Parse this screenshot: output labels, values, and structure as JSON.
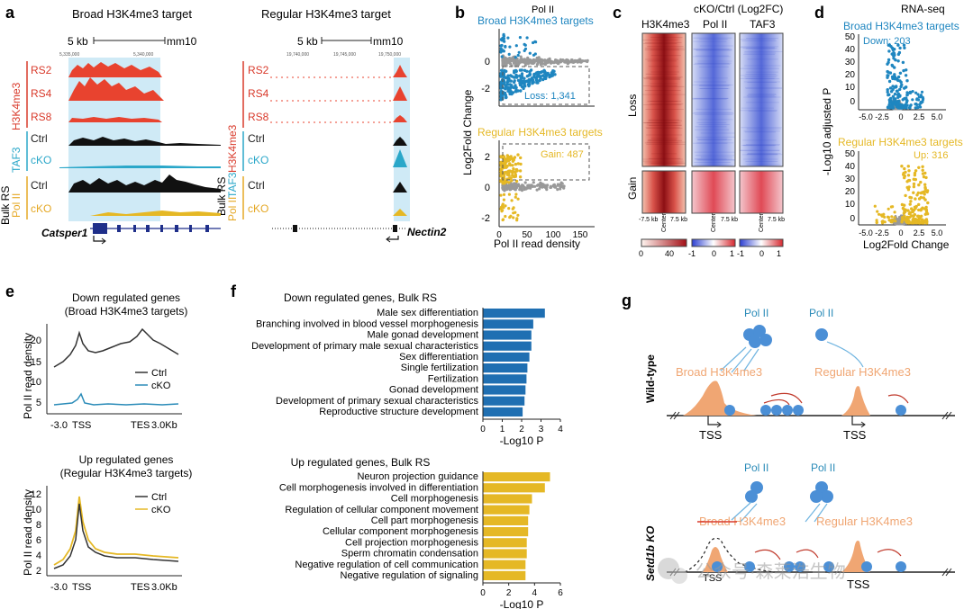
{
  "panel_labels": [
    "a",
    "b",
    "c",
    "d",
    "e",
    "f",
    "g"
  ],
  "a": {
    "title_left": "Broad H3K4me3 target",
    "title_right": "Regular H3K4me3 target",
    "scale_text": "5 kb",
    "genome": "mm10",
    "coords_left": [
      "5,335,000",
      "5,340,000"
    ],
    "coords_right": [
      "19,740,000",
      "19,745,000",
      "19,750,000"
    ],
    "group_h3k4me3": "H3K4me3",
    "group_taf3": "TAF3",
    "group_pol2": "Pol II",
    "bulk": "Bulk RS",
    "tracks": [
      "RS2",
      "RS4",
      "RS8",
      "Ctrl",
      "cKO",
      "Ctrl",
      "cKO"
    ],
    "gene_left": "Catsper1",
    "gene_right": "Nectin2"
  },
  "b": {
    "title": "Pol II",
    "top_label": "Broad H3K4me3 targets",
    "bottom_label": "Regular H3K4me3 targets",
    "loss": "Loss: 1,341",
    "gain": "Gain: 487",
    "ylabel": "Log2Fold Change",
    "xlabel": "Pol II read density",
    "xticks": [
      "0",
      "50",
      "100",
      "150"
    ],
    "yticks_top": [
      "0",
      "-2"
    ],
    "yticks_bottom": [
      "2",
      "0",
      "-2"
    ]
  },
  "c": {
    "title": "cKO/Ctrl (Log2FC)",
    "cols": [
      "H3K4me3",
      "Pol II",
      "TAF3"
    ],
    "rows": [
      "Loss",
      "Gain"
    ],
    "xticks": [
      "-7.5 kb",
      "Center",
      "7.5 kb"
    ],
    "cbar1": [
      "0",
      "40"
    ],
    "cbar2": [
      "-1",
      "0",
      "1"
    ]
  },
  "d": {
    "title": "RNA-seq",
    "top_label": "Broad H3K4me3 targets",
    "bottom_label": "Regular H3K4me3 targets",
    "down": "Down: 203",
    "up": "Up: 316",
    "ylabel": "-Log10 adjusted P",
    "xlabel": "Log2Fold Change",
    "xticks": [
      "-5.0",
      "-2.5",
      "0",
      "2.5",
      "5.0"
    ],
    "yticks_top": [
      "50",
      "40",
      "30",
      "20",
      "10",
      "0"
    ],
    "yticks_bottom": [
      "50",
      "40",
      "30",
      "20",
      "10",
      "0"
    ]
  },
  "e": {
    "top_title1": "Down regulated genes",
    "top_title2": "(Broad H3K4me3 targets)",
    "bottom_title1": "Up regulated genes",
    "bottom_title2": "(Regular H3K4me3 targets)",
    "ylabel": "Pol II read density",
    "xticks": [
      "-3.0",
      "TSS",
      "TES",
      "3.0Kb"
    ],
    "yticks_top": [
      "20",
      "15",
      "10",
      "5"
    ],
    "yticks_bottom": [
      "12",
      "10",
      "8",
      "6",
      "4",
      "2"
    ],
    "legend": [
      "Ctrl",
      "cKO"
    ]
  },
  "f": {
    "top_title": "Down regulated genes, Bulk RS",
    "bottom_title": "Up regulated genes, Bulk RS",
    "xlabel": "-Log10 P",
    "xticks": [
      "0",
      "1",
      "2",
      "3",
      "4"
    ],
    "xticks_bottom": [
      "0",
      "2",
      "4",
      "6"
    ]
  },
  "chart_data": [
    {
      "type": "bar",
      "title": "Down regulated genes, Bulk RS",
      "xlabel": "-Log10 P",
      "xlim": [
        0,
        4
      ],
      "categories": [
        "Male sex differentiation",
        "Branching involved in blood vessel morphogenesis",
        "Male gonad development",
        "Development of primary male sexual characteristics",
        "Sex differentiation",
        "Single fertilization",
        "Fertilization",
        "Gonad development",
        "Development of primary sexual characteristics",
        "Reproductive structure development"
      ],
      "values": [
        3.2,
        2.6,
        2.5,
        2.5,
        2.4,
        2.3,
        2.25,
        2.2,
        2.15,
        2.05
      ],
      "color": "#1f6fb2"
    },
    {
      "type": "bar",
      "title": "Up regulated genes, Bulk RS",
      "xlabel": "-Log10 P",
      "xlim": [
        0,
        6
      ],
      "categories": [
        "Neuron projection guidance",
        "Cell morphogenesis involved in differentiation",
        "Cell morphogenesis",
        "Regulation of cellular component movement",
        "Cell part morphogenesis",
        "Cellular component morphogenesis",
        "Cell projection morphogenesis",
        "Sperm chromatin condensation",
        "Negative regulation of cell communication",
        "Negative regulation of signaling"
      ],
      "values": [
        5.2,
        4.8,
        3.8,
        3.6,
        3.5,
        3.5,
        3.4,
        3.4,
        3.3,
        3.3
      ],
      "color": "#e5b825"
    }
  ],
  "g": {
    "polii": "Pol II",
    "wildtype": "Wild-type",
    "ko": "Setd1b KO",
    "broad": "Broad H3K4me3",
    "regular": "Regular H3K4me3",
    "tss": "TSS"
  },
  "watermark": "公众号·森莱浩生物",
  "colors": {
    "blue": "#1f6fb2",
    "gold": "#e5b825",
    "red": "#d93a2b",
    "teal": "#2aa7c9",
    "salmon": "#f0a673",
    "lightblue": "#bfe3f3",
    "polii": "#4b8fd6"
  }
}
